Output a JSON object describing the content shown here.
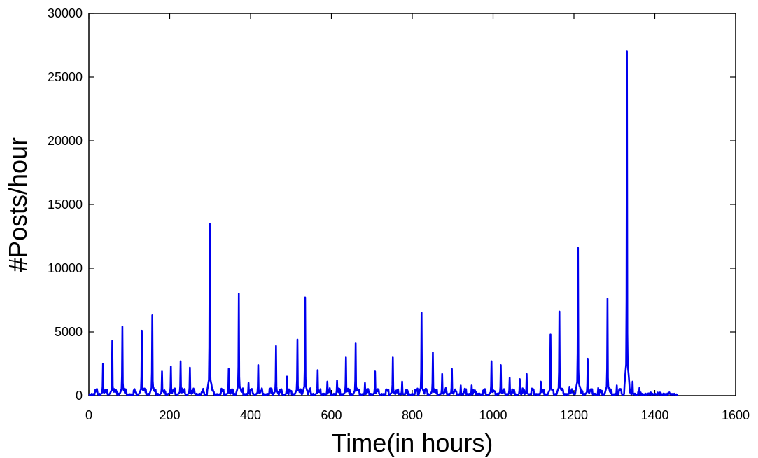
{
  "chart_data": {
    "type": "line",
    "title": "",
    "xlabel": "Time(in hours)",
    "ylabel": "#Posts/hour",
    "xlim": [
      0,
      1600
    ],
    "ylim": [
      0,
      30000
    ],
    "xticks": [
      0,
      200,
      400,
      600,
      800,
      1000,
      1200,
      1400,
      1600
    ],
    "yticks": [
      0,
      5000,
      10000,
      15000,
      20000,
      25000,
      30000
    ],
    "grid": false,
    "legend": "none",
    "series_color": "#0000ee",
    "peaks": [
      {
        "x": 35,
        "y": 2500
      },
      {
        "x": 58,
        "y": 4300
      },
      {
        "x": 83,
        "y": 5400
      },
      {
        "x": 131,
        "y": 5100
      },
      {
        "x": 157,
        "y": 6300
      },
      {
        "x": 181,
        "y": 1900
      },
      {
        "x": 203,
        "y": 2300
      },
      {
        "x": 227,
        "y": 2700
      },
      {
        "x": 250,
        "y": 2200
      },
      {
        "x": 299,
        "y": 13500
      },
      {
        "x": 346,
        "y": 2100
      },
      {
        "x": 371,
        "y": 8000
      },
      {
        "x": 395,
        "y": 1000
      },
      {
        "x": 419,
        "y": 2400
      },
      {
        "x": 463,
        "y": 3900
      },
      {
        "x": 490,
        "y": 1500
      },
      {
        "x": 516,
        "y": 4400
      },
      {
        "x": 535,
        "y": 7700
      },
      {
        "x": 566,
        "y": 2000
      },
      {
        "x": 590,
        "y": 1100
      },
      {
        "x": 614,
        "y": 1200
      },
      {
        "x": 636,
        "y": 3000
      },
      {
        "x": 660,
        "y": 4100
      },
      {
        "x": 683,
        "y": 1000
      },
      {
        "x": 708,
        "y": 1900
      },
      {
        "x": 752,
        "y": 3000
      },
      {
        "x": 775,
        "y": 1100
      },
      {
        "x": 823,
        "y": 6500
      },
      {
        "x": 851,
        "y": 3400
      },
      {
        "x": 874,
        "y": 1700
      },
      {
        "x": 898,
        "y": 2100
      },
      {
        "x": 920,
        "y": 800
      },
      {
        "x": 947,
        "y": 800
      },
      {
        "x": 996,
        "y": 2700
      },
      {
        "x": 1019,
        "y": 2400
      },
      {
        "x": 1041,
        "y": 1400
      },
      {
        "x": 1066,
        "y": 1300
      },
      {
        "x": 1083,
        "y": 1700
      },
      {
        "x": 1118,
        "y": 1100
      },
      {
        "x": 1142,
        "y": 4800
      },
      {
        "x": 1164,
        "y": 6600
      },
      {
        "x": 1189,
        "y": 700
      },
      {
        "x": 1210,
        "y": 11600
      },
      {
        "x": 1234,
        "y": 2900
      },
      {
        "x": 1260,
        "y": 600
      },
      {
        "x": 1283,
        "y": 7600
      },
      {
        "x": 1306,
        "y": 800
      },
      {
        "x": 1331,
        "y": 27000
      },
      {
        "x": 1345,
        "y": 1100
      },
      {
        "x": 1362,
        "y": 600
      },
      {
        "x": 1390,
        "y": 250
      },
      {
        "x": 1415,
        "y": 200
      },
      {
        "x": 1440,
        "y": 150
      }
    ],
    "x_end": 1455
  }
}
